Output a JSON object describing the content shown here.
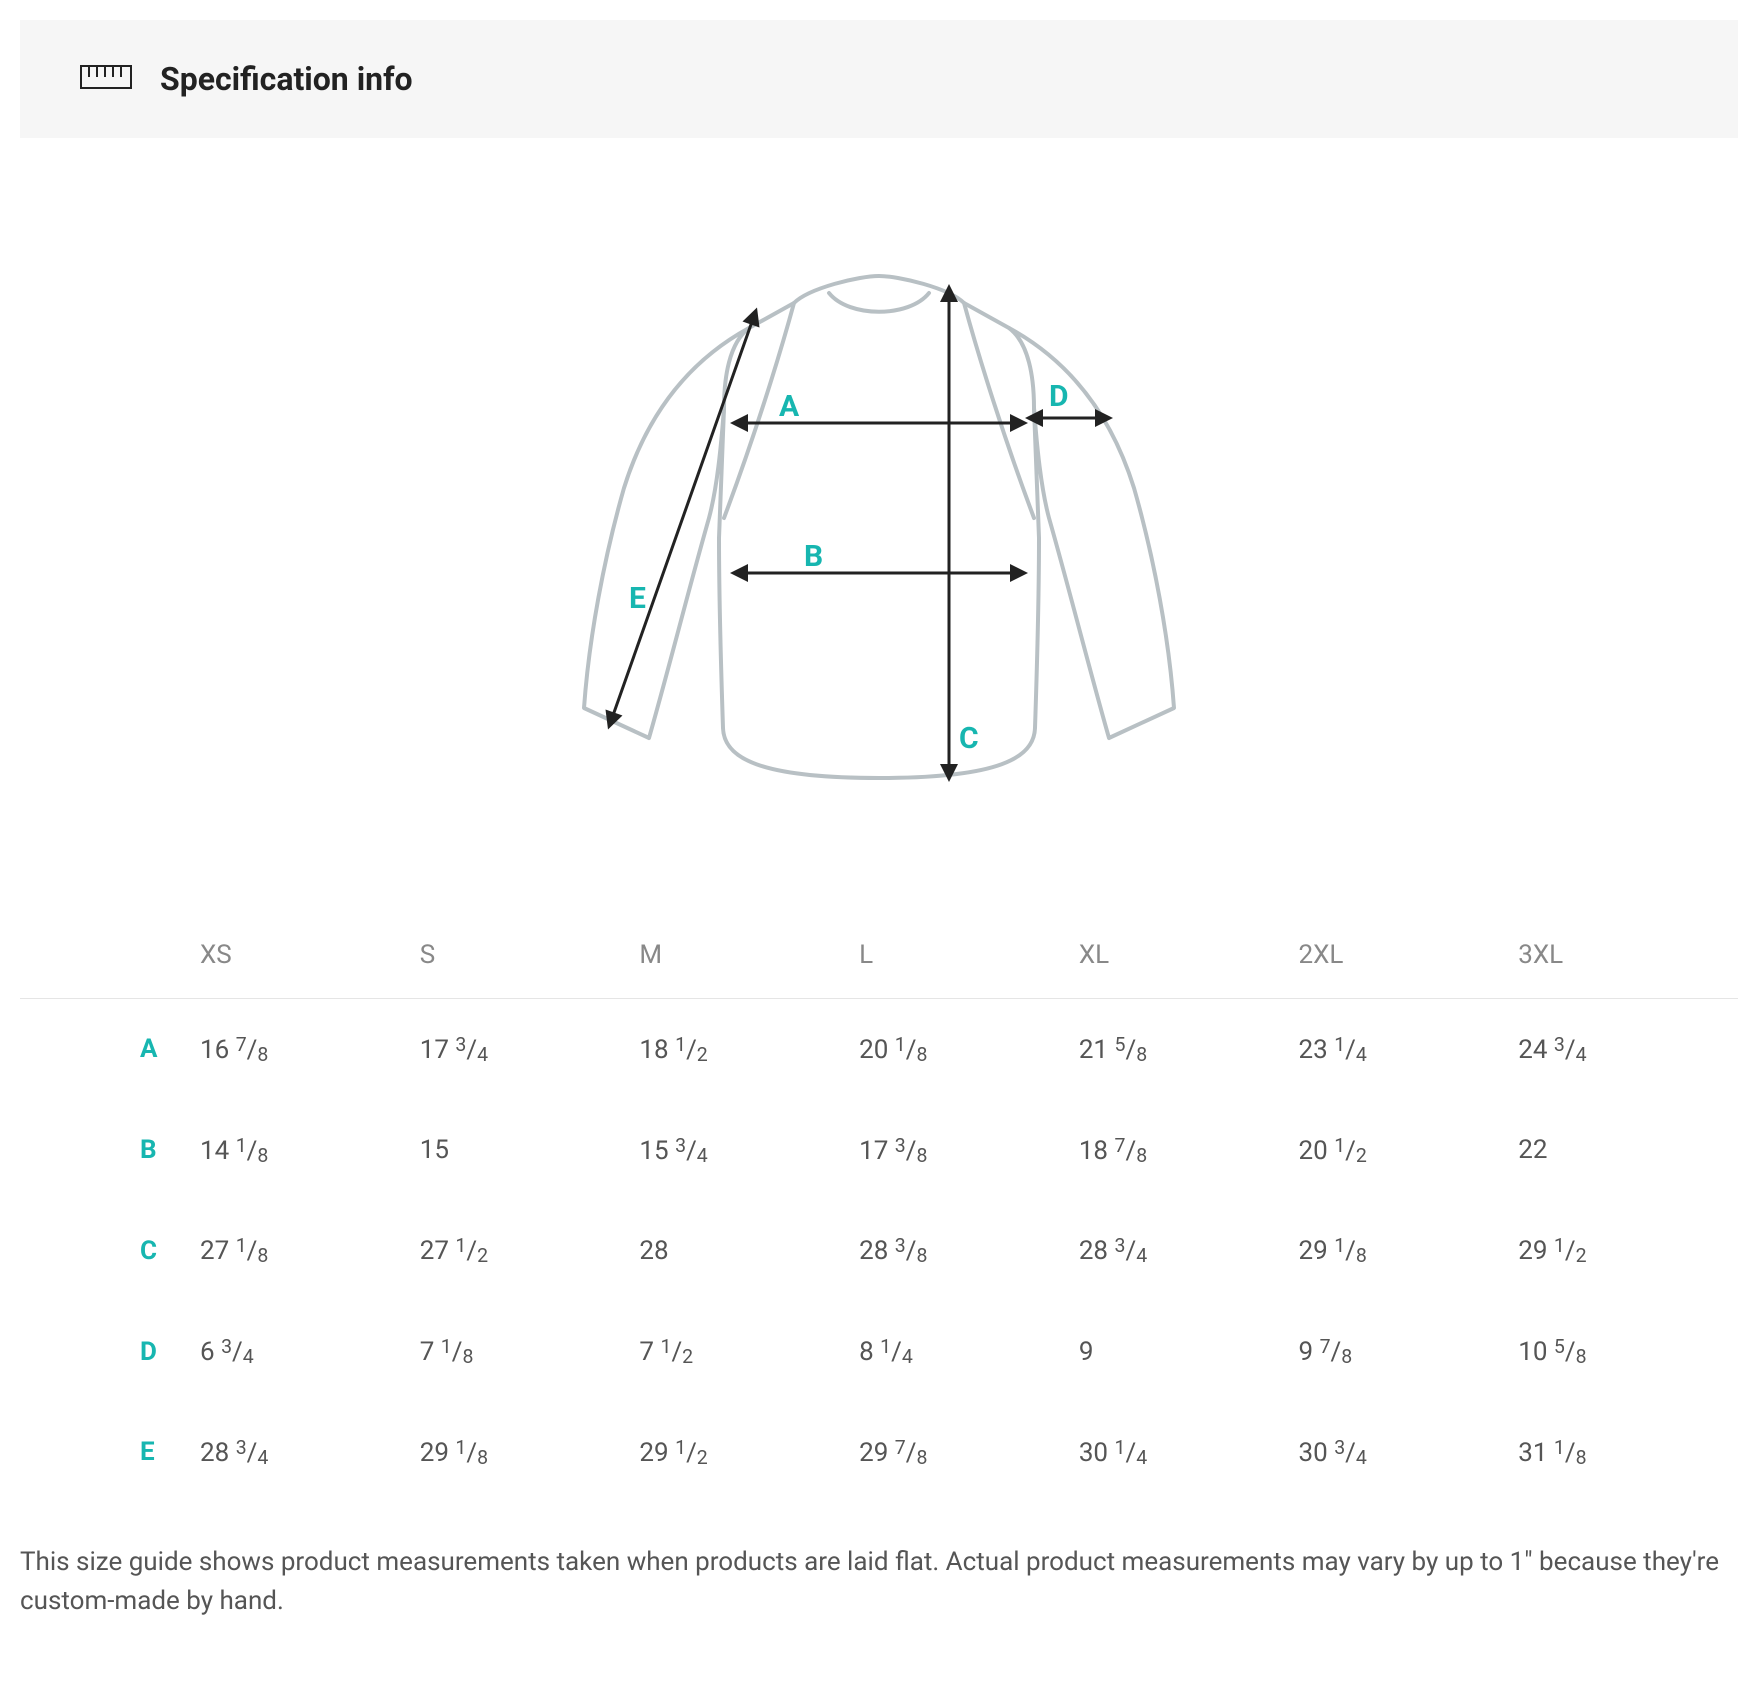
{
  "header": {
    "title": "Specification info"
  },
  "colors": {
    "accent": "#17b6b0",
    "header_bg": "#f6f6f6",
    "border": "#e5e5e5",
    "text_muted": "#888888",
    "text_body": "#555555",
    "diagram_outline": "#b8c0c4",
    "diagram_arrow": "#222222"
  },
  "diagram": {
    "type": "garment-measurement-diagram",
    "labels": [
      "A",
      "B",
      "C",
      "D",
      "E"
    ],
    "label_color": "#17b6b0",
    "outline_color": "#b8c0c4",
    "arrow_color": "#222222"
  },
  "table": {
    "columns": [
      "XS",
      "S",
      "M",
      "L",
      "XL",
      "2XL",
      "3XL"
    ],
    "row_labels": [
      "A",
      "B",
      "C",
      "D",
      "E"
    ],
    "rows": [
      [
        "16 ⅞",
        "17 ¾",
        "18 ½",
        "20 ⅛",
        "21 ⅝",
        "23 ¼",
        "24 ¾"
      ],
      [
        "14 ⅛",
        "15",
        "15 ¾",
        "17 ⅜",
        "18 ⅞",
        "20 ½",
        "22"
      ],
      [
        "27 ⅛",
        "27 ½",
        "28",
        "28 ⅜",
        "28 ¾",
        "29 ⅛",
        "29 ½"
      ],
      [
        "6 ¾",
        "7 ⅛",
        "7 ½",
        "8 ¼",
        "9",
        "9 ⅞",
        "10 ⅝"
      ],
      [
        "28 ¾",
        "29 ⅛",
        "29 ½",
        "29 ⅞",
        "30 ¼",
        "30 ¾",
        "31 ⅛"
      ]
    ],
    "row_label_color": "#17b6b0"
  },
  "footnote": "This size guide shows product measurements taken when products are laid flat. Actual product measurements may vary by up to 1\" because they're custom-made by hand."
}
